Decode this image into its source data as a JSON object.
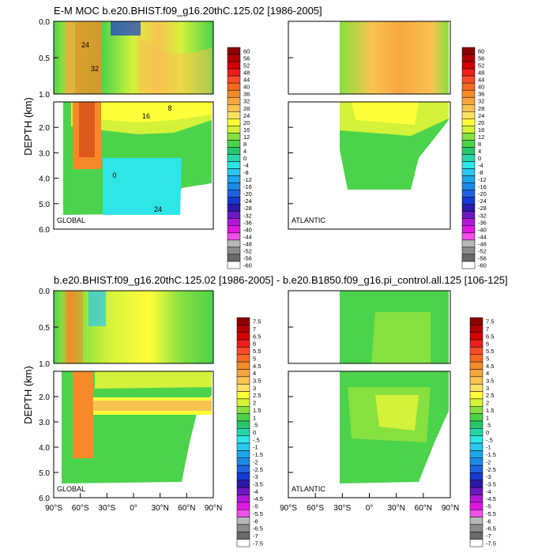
{
  "chart_data": [
    {
      "type": "heatmap",
      "title": "E-M MOC  b.e20.BHIST.f09_g16.20thC.125.02 [1986-2005]",
      "ylabel": "DEPTH (km)",
      "panels": [
        {
          "label": "GLOBAL",
          "ylim": [
            0,
            6.0
          ]
        },
        {
          "label": "ATLANTIC",
          "ylim": [
            0,
            6.0
          ]
        }
      ],
      "xlim": [
        -90,
        90
      ],
      "y_ticks": [
        "0.0",
        "0.5",
        "1.0",
        "2.0",
        "3.0",
        "4.0",
        "5.0",
        "6.0"
      ],
      "contour_labels": [
        "24",
        "32",
        "16",
        "8",
        "0"
      ],
      "colorbar": [
        "60",
        "56",
        "52",
        "48",
        "44",
        "40",
        "36",
        "32",
        "28",
        "24",
        "20",
        "16",
        "12",
        "8",
        "4",
        "0",
        "-4",
        "-8",
        "-12",
        "-16",
        "-20",
        "-24",
        "-28",
        "-32",
        "-36",
        "-40",
        "-44",
        "-48",
        "-52",
        "-56",
        "-60"
      ]
    },
    {
      "type": "heatmap",
      "title": "b.e20.BHIST.f09_g16.20thC.125.02 [1986-2005] - b.e20.B1850.f09_g16.pi_control.all.125 [106-125]",
      "ylabel": "DEPTH (km)",
      "panels": [
        {
          "label": "GLOBAL",
          "ylim": [
            0,
            6.0
          ]
        },
        {
          "label": "ATLANTIC",
          "ylim": [
            0,
            6.0
          ]
        }
      ],
      "xlim": [
        -90,
        90
      ],
      "x_ticks": [
        "90°S",
        "60°S",
        "30°S",
        "0°",
        "30°N",
        "60°N",
        "90°N"
      ],
      "y_ticks": [
        "0.0",
        "0.5",
        "1.0",
        "2.0",
        "3.0",
        "4.0",
        "5.0",
        "6.0"
      ],
      "colorbar": [
        "7.5",
        "7",
        "6.5",
        "6",
        "5.5",
        "5",
        "4.5",
        "4",
        "3.5",
        "3",
        "2.5",
        "2",
        "1.5",
        "1",
        ".5",
        "0",
        "-.5",
        "-1",
        "-1.5",
        "-2",
        "-2.5",
        "-3",
        "-3.5",
        "-4",
        "-4.5",
        "-5",
        "-5.5",
        "-6",
        "-6.5",
        "-7",
        "-7.5"
      ]
    }
  ],
  "colors": [
    "#8b0000",
    "#b10000",
    "#d40000",
    "#ee1c1c",
    "#ff4a2a",
    "#f46a20",
    "#f58a2a",
    "#f8a640",
    "#f9c352",
    "#ffe066",
    "#ffff3a",
    "#d4f23a",
    "#86e040",
    "#4cd34c",
    "#28c66c",
    "#28d6a8",
    "#2ee6e6",
    "#2ac8f0",
    "#1ea6ec",
    "#1e88e6",
    "#1e62de",
    "#1838d0",
    "#2a1aa8",
    "#6a18c0",
    "#b018d8",
    "#e018e0",
    "#f050e8",
    "#b8b8b8",
    "#8c8c8c",
    "#6a6a6a",
    "#ffffff"
  ]
}
